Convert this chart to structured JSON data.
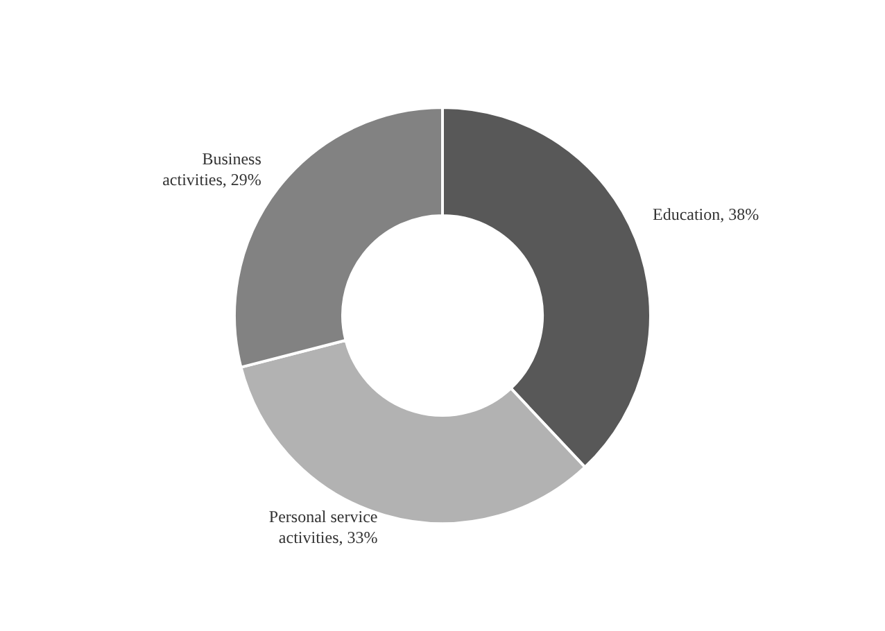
{
  "chart_data": {
    "type": "donut",
    "categories": [
      "Education",
      "Personal service activities",
      "Business activities"
    ],
    "values": [
      38,
      33,
      29
    ],
    "value_labels": [
      "38%",
      "33%",
      "29%"
    ],
    "colors": [
      "#585858",
      "#b2b2b2",
      "#828282"
    ]
  }
}
